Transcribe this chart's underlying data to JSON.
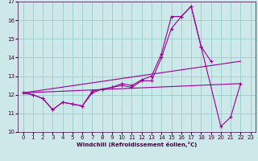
{
  "xlabel": "Windchill (Refroidissement éolien,°C)",
  "bg_color": "#cce8e8",
  "grid_color": "#99cccc",
  "line_color": "#990099",
  "xlim": [
    -0.5,
    23.5
  ],
  "ylim": [
    10,
    17
  ],
  "xticks": [
    0,
    1,
    2,
    3,
    4,
    5,
    6,
    7,
    8,
    9,
    10,
    11,
    12,
    13,
    14,
    15,
    16,
    17,
    18,
    19,
    20,
    21,
    22,
    23
  ],
  "yticks": [
    10,
    11,
    12,
    13,
    14,
    15,
    16,
    17
  ],
  "series": [
    {
      "x": [
        0,
        1,
        2,
        3,
        4,
        5,
        6,
        7,
        8,
        9,
        10,
        11,
        12,
        13,
        14,
        15,
        16,
        17,
        18,
        20,
        21,
        22
      ],
      "y": [
        12.1,
        12.0,
        11.8,
        11.2,
        11.6,
        11.5,
        11.4,
        12.2,
        12.3,
        12.4,
        12.5,
        12.4,
        12.75,
        12.75,
        14.0,
        15.55,
        16.2,
        16.75,
        14.6,
        10.3,
        10.8,
        12.6
      ],
      "marker": true
    },
    {
      "x": [
        0,
        1,
        2,
        3,
        4,
        5,
        6,
        7,
        8,
        9,
        10,
        11,
        12,
        13,
        14,
        15,
        16,
        17,
        18,
        19
      ],
      "y": [
        12.1,
        12.0,
        11.8,
        11.2,
        11.6,
        11.5,
        11.4,
        12.1,
        12.3,
        12.4,
        12.6,
        12.5,
        12.8,
        13.0,
        14.2,
        16.2,
        16.2,
        16.75,
        14.6,
        13.8
      ],
      "marker": true
    },
    {
      "x": [
        0,
        22
      ],
      "y": [
        12.1,
        12.6
      ],
      "marker": false
    },
    {
      "x": [
        0,
        22
      ],
      "y": [
        12.1,
        13.8
      ],
      "marker": false
    }
  ]
}
